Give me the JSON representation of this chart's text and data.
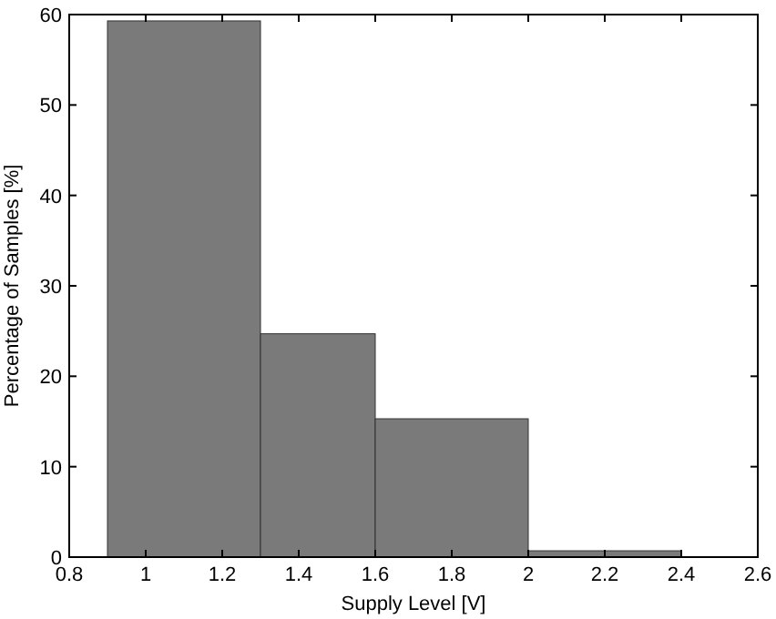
{
  "chart_data": {
    "type": "histogram",
    "xlabel": "Supply Level [V]",
    "ylabel": "Percentage of Samples [%]",
    "bins": [
      0.9,
      1.3,
      1.6,
      2.0,
      2.4
    ],
    "values": [
      59.3,
      24.7,
      15.3,
      0.7
    ],
    "color": "#7a7a7a",
    "xlim": [
      0.8,
      2.6
    ],
    "xticks": [
      0.8,
      1,
      1.2,
      1.4,
      1.6,
      1.8,
      2,
      2.2,
      2.4,
      2.6
    ],
    "ylim": [
      0,
      60
    ],
    "yticks": [
      0,
      10,
      20,
      30,
      40,
      50,
      60
    ],
    "grid": false
  }
}
